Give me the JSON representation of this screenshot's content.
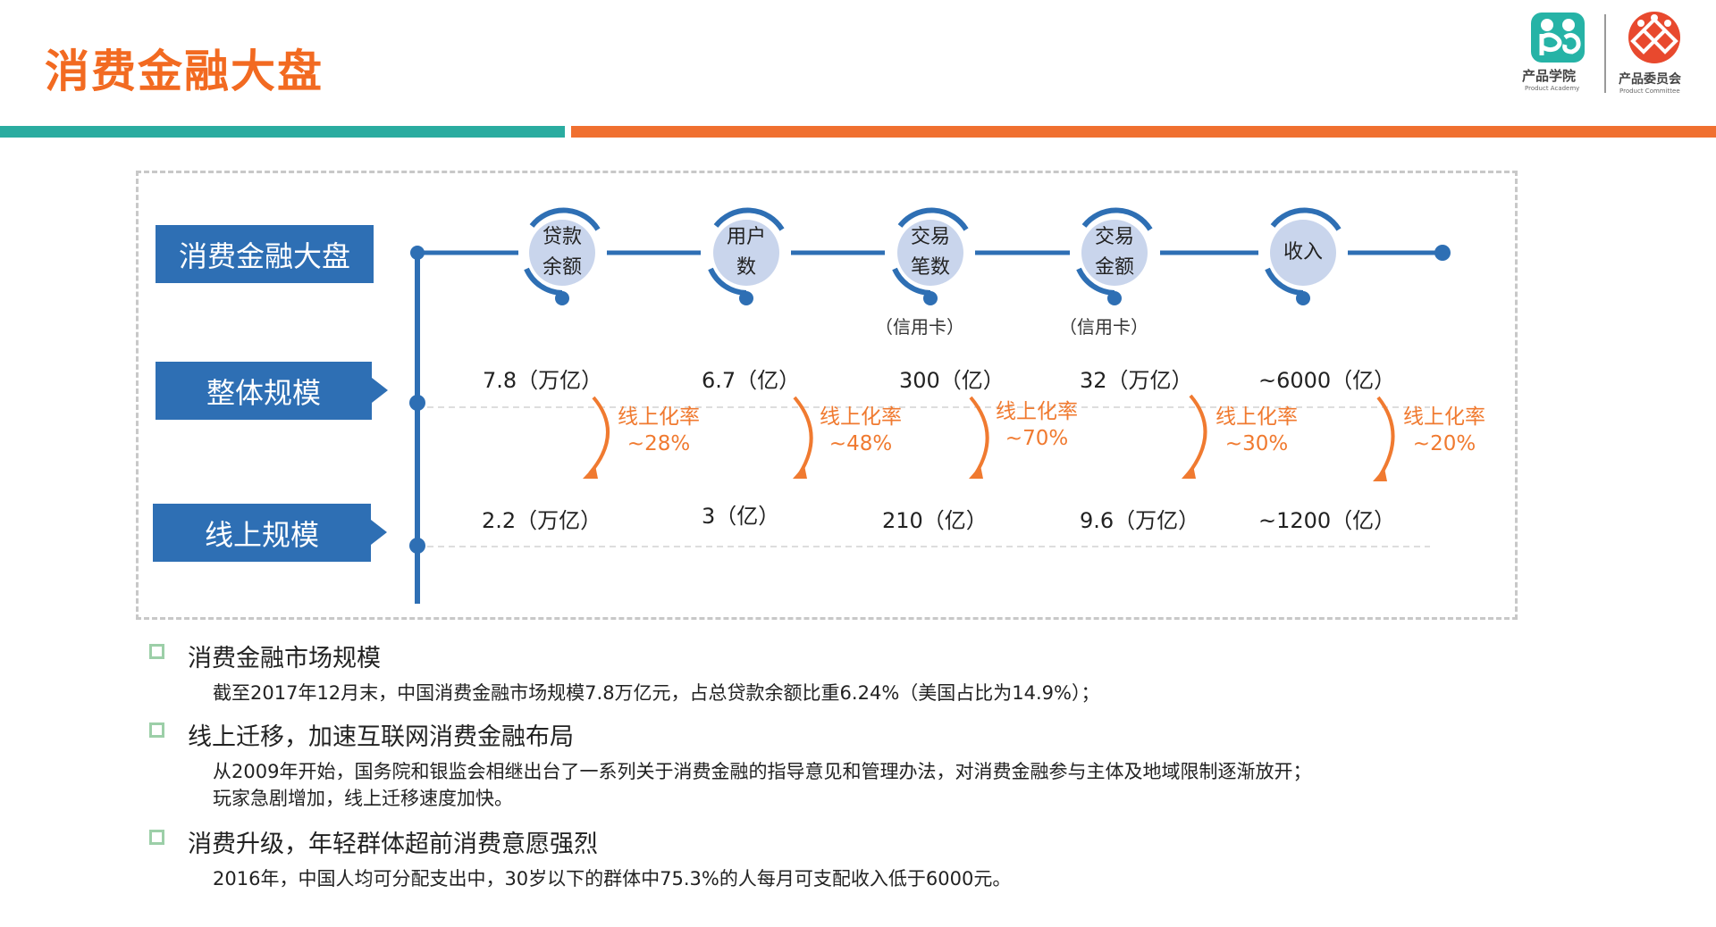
{
  "page": {
    "title": "消费金融大盘"
  },
  "logos": {
    "academy_name": "产品学院",
    "academy_sub": "Product Academy",
    "committee_name": "产品委员会",
    "committee_sub": "Product Committee"
  },
  "colors": {
    "accent_orange": "#f26a21",
    "teal": "#2aaca0",
    "blue": "#2e6fb4"
  },
  "diagram": {
    "labels": {
      "main": "消费金融大盘",
      "overall": "整体规模",
      "online": "线上规模"
    },
    "metrics": [
      {
        "line1": "贷款",
        "line2": "余额",
        "note": "",
        "overall": "7.8（万亿）",
        "online": "2.2（万亿）",
        "rate_label": "线上化率",
        "rate": "~28%"
      },
      {
        "line1": "用户",
        "line2": "数",
        "note": "",
        "overall": "6.7（亿）",
        "online": "3（亿）",
        "rate_label": "线上化率",
        "rate": "~48%"
      },
      {
        "line1": "交易",
        "line2": "笔数",
        "note": "（信用卡）",
        "overall": "300（亿）",
        "online": "210（亿）",
        "rate_label": "线上化率",
        "rate": "~70%"
      },
      {
        "line1": "交易",
        "line2": "金额",
        "note": "（信用卡）",
        "overall": "32（万亿）",
        "online": "9.6（万亿）",
        "rate_label": "线上化率",
        "rate": "~30%"
      },
      {
        "line1": "收入",
        "line2": "",
        "note": "",
        "overall": "~6000（亿）",
        "online": "~1200（亿）",
        "rate_label": "线上化率",
        "rate": "~20%"
      }
    ]
  },
  "bullets": [
    {
      "heading": "消费金融市场规模",
      "lines": [
        "截至2017年12月末，中国消费金融市场规模7.8万亿元，占总贷款余额比重6.24%（美国占比为14.9%）；"
      ]
    },
    {
      "heading": "线上迁移，加速互联网消费金融布局",
      "lines": [
        "从2009年开始，国务院和银监会相继出台了一系列关于消费金融的指导意见和管理办法，对消费金融参与主体及地域限制逐渐放开；",
        "玩家急剧增加，线上迁移速度加快。"
      ]
    },
    {
      "heading": "消费升级，年轻群体超前消费意愿强烈",
      "lines": [
        "2016年，中国人均可分配支出中，30岁以下的群体中75.3%的人每月可支配收入低于6000元。"
      ]
    }
  ]
}
